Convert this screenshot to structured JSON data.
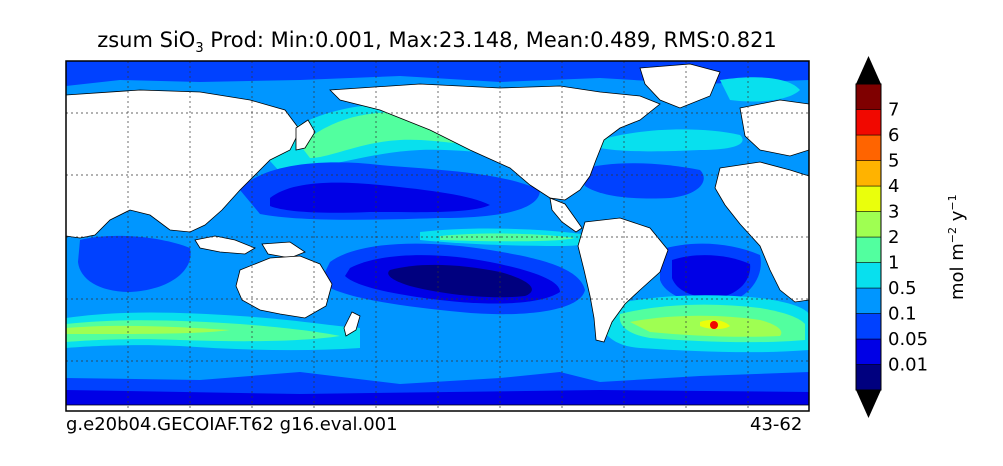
{
  "title": {
    "prefix": "zsum SiO",
    "subscript": "3",
    "rest": "  Prod: Min:0.001, Max:23.148, Mean:0.489, RMS:0.821"
  },
  "footer": {
    "run_id": "g.e20b04.GECOIAF.T62 g16.eval.001",
    "years": "43-62"
  },
  "colorbar": {
    "unit_parts": [
      "mol m",
      "−2",
      " y",
      "−1"
    ],
    "levels": [
      {
        "label": "0.01",
        "color": "#00007f"
      },
      {
        "label": "0.05",
        "color": "#0000e6"
      },
      {
        "label": "0.1",
        "color": "#0041ff"
      },
      {
        "label": "0.5",
        "color": "#0096ff"
      },
      {
        "label": "1",
        "color": "#08e0ee"
      },
      {
        "label": "2",
        "color": "#52ff9f"
      },
      {
        "label": "3",
        "color": "#9fff52"
      },
      {
        "label": "4",
        "color": "#eaff0c"
      },
      {
        "label": "5",
        "color": "#ffb300"
      },
      {
        "label": "6",
        "color": "#ff6400"
      },
      {
        "label": "7",
        "color": "#f10800"
      },
      {
        "label": "",
        "color": "#7f0000"
      }
    ],
    "under_color": "#000000",
    "over_color": "#000000"
  },
  "map": {
    "land_color": "#ffffff",
    "ocean_base_color": "#0096ff",
    "grid": true
  }
}
